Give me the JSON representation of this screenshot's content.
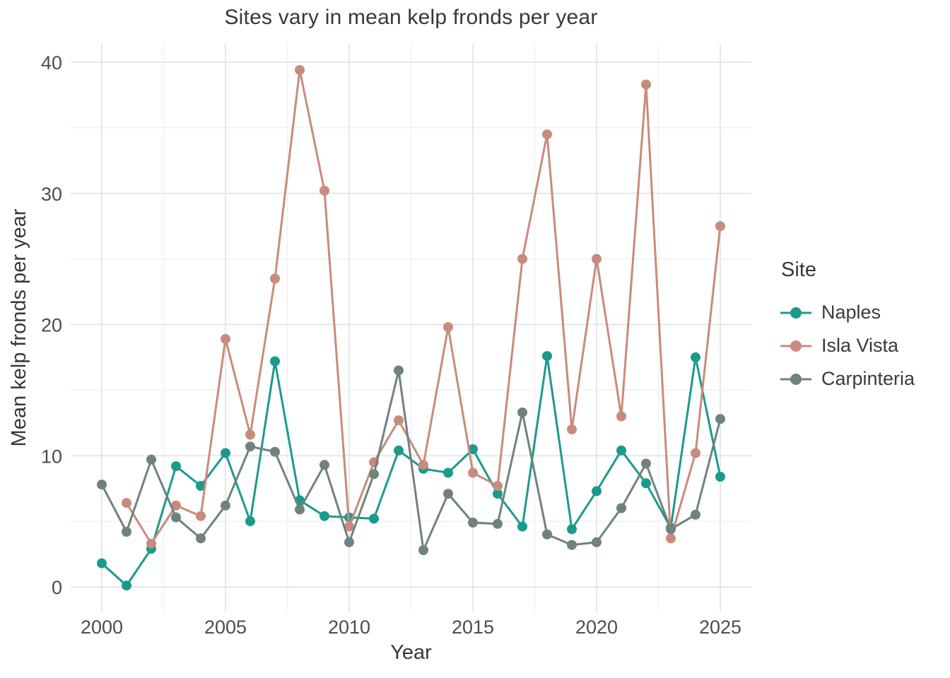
{
  "chart_data": {
    "type": "line",
    "title": "Sites vary in mean kelp fronds per year",
    "xlabel": "Year",
    "ylabel": "Mean kelp fronds per year",
    "legend_title": "Site",
    "legend_position": "right",
    "grid": "major and minor gridlines on white background",
    "x_ticks": [
      2000,
      2005,
      2010,
      2015,
      2020,
      2025
    ],
    "x_minor_ticks": [
      2002.5,
      2007.5,
      2012.5,
      2017.5,
      2022.5
    ],
    "y_ticks": [
      0,
      10,
      20,
      30,
      40
    ],
    "y_minor_ticks": [
      5,
      15,
      25,
      35
    ],
    "xlim": [
      1998.7,
      2026.3
    ],
    "ylim": [
      -1.9,
      41.4
    ],
    "series": [
      {
        "name": "Naples",
        "color": "#1b9a8c",
        "start_year": 2000,
        "years": [
          2000,
          2001,
          2002,
          2003,
          2004,
          2005,
          2006,
          2007,
          2008,
          2009,
          2010,
          2011,
          2012,
          2013,
          2014,
          2015,
          2016,
          2017,
          2018,
          2019,
          2020,
          2021,
          2022,
          2023,
          2024,
          2025
        ],
        "values": [
          1.8,
          0.1,
          2.9,
          9.2,
          7.7,
          10.2,
          5.0,
          17.2,
          6.6,
          5.4,
          5.3,
          5.2,
          10.4,
          9.0,
          8.7,
          10.5,
          7.1,
          4.6,
          17.6,
          4.4,
          7.3,
          10.4,
          7.9,
          4.5,
          17.5,
          8.4
        ]
      },
      {
        "name": "Isla Vista",
        "color": "#c88b7c",
        "start_year": 2001,
        "years": [
          2001,
          2002,
          2003,
          2004,
          2005,
          2006,
          2007,
          2008,
          2009,
          2010,
          2011,
          2012,
          2013,
          2014,
          2015,
          2016,
          2017,
          2018,
          2019,
          2020,
          2021,
          2022,
          2023,
          2024,
          2025
        ],
        "values": [
          6.4,
          3.3,
          6.2,
          5.4,
          18.9,
          11.6,
          23.5,
          39.4,
          30.2,
          4.6,
          9.5,
          12.7,
          9.3,
          19.8,
          8.7,
          7.7,
          25.0,
          34.5,
          12.0,
          25.0,
          13.0,
          38.3,
          3.7,
          10.2,
          27.5
        ]
      },
      {
        "name": "Carpinteria",
        "color": "#6f827e",
        "start_year": 2000,
        "years": [
          2000,
          2001,
          2002,
          2003,
          2004,
          2005,
          2006,
          2007,
          2008,
          2009,
          2010,
          2011,
          2012,
          2013,
          2014,
          2015,
          2016,
          2017,
          2018,
          2019,
          2020,
          2021,
          2022,
          2023,
          2024,
          2025
        ],
        "values": [
          7.8,
          4.2,
          9.7,
          5.3,
          3.7,
          6.2,
          10.7,
          10.3,
          5.9,
          9.3,
          3.4,
          8.6,
          16.5,
          2.8,
          7.1,
          4.9,
          4.8,
          13.3,
          4.0,
          3.2,
          3.4,
          6.0,
          9.4,
          4.4,
          5.5,
          12.8
        ]
      }
    ]
  },
  "style": {
    "background": "#ffffff",
    "grid_major_color": "#e7e7e7",
    "grid_minor_color": "#f1f1f1",
    "tick_label_color": "#4d4d4d",
    "title_color": "#383838",
    "axis_title_color": "#383838",
    "legend_text_color": "#3a3a3a",
    "marker_radius": 7,
    "line_width": 3
  }
}
